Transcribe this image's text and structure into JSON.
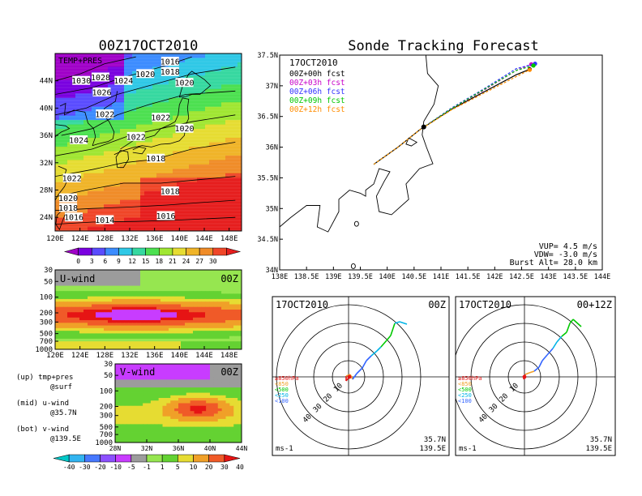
{
  "titles": {
    "left": "00Z17OCT2010",
    "right": "Sonde Tracking Forecast"
  },
  "colors": {
    "temp_scale": [
      "#a000c8",
      "#7a00e0",
      "#5a4cff",
      "#3c8cff",
      "#2fc8e6",
      "#36d8a0",
      "#4ce050",
      "#a0e632",
      "#e6dc32",
      "#f0b428",
      "#f08c28",
      "#f04628",
      "#e61e1e"
    ],
    "wind_scale": [
      "#00c8c8",
      "#32b4f0",
      "#4678ff",
      "#8c50ff",
      "#c83cff",
      "#9c9c9c",
      "#96e650",
      "#64d232",
      "#e6dc32",
      "#f0a028",
      "#f05a28",
      "#e61414"
    ],
    "track_00": "#000000",
    "track_03": "#c800c8",
    "track_06": "#3232ff",
    "track_09": "#00c800",
    "track_12": "#ff8c00",
    "hodo_low": "#e61414",
    "hodo_850": "#f0a028",
    "hodo_500": "#00c800",
    "hodo_250": "#00b4e6",
    "hodo_100": "#3264ff"
  },
  "side_labels": {
    "up": "(up) tmp+pres",
    "up_sub": "@surf",
    "mid": "(mid) u-wind",
    "mid_sub": "@35.7N",
    "bot": "(bot) v-wind",
    "bot_sub": "@139.5E"
  },
  "chart_data": [
    {
      "type": "heatmap",
      "panel": "surface temperature + pressure",
      "title": "TEMP+PRES",
      "x_ticks": [
        "120E",
        "124E",
        "128E",
        "132E",
        "136E",
        "140E",
        "144E",
        "148E"
      ],
      "y_ticks": [
        "24N",
        "28N",
        "32N",
        "36N",
        "40N",
        "44N"
      ],
      "xlim": [
        120,
        150
      ],
      "ylim": [
        22,
        48
      ],
      "isobar_labels": [
        {
          "text": "1016",
          "lon": 138.5,
          "lat": 46.8
        },
        {
          "text": "1018",
          "lon": 138.5,
          "lat": 45.3
        },
        {
          "text": "1030",
          "lon": 124.2,
          "lat": 44.0
        },
        {
          "text": "1028",
          "lon": 127.3,
          "lat": 44.5
        },
        {
          "text": "1024",
          "lon": 131.0,
          "lat": 44.0
        },
        {
          "text": "1020",
          "lon": 134.5,
          "lat": 45.0
        },
        {
          "text": "1020",
          "lon": 140.8,
          "lat": 43.7
        },
        {
          "text": "1026",
          "lon": 127.5,
          "lat": 42.3
        },
        {
          "text": "1022",
          "lon": 128.0,
          "lat": 39.1
        },
        {
          "text": "1022",
          "lon": 137.0,
          "lat": 38.6
        },
        {
          "text": "1020",
          "lon": 140.8,
          "lat": 37.0
        },
        {
          "text": "1024",
          "lon": 123.8,
          "lat": 35.3
        },
        {
          "text": "1022",
          "lon": 133.0,
          "lat": 35.8
        },
        {
          "text": "1018",
          "lon": 136.2,
          "lat": 32.6
        },
        {
          "text": "1022",
          "lon": 122.7,
          "lat": 29.7
        },
        {
          "text": "1018",
          "lon": 138.5,
          "lat": 27.8
        },
        {
          "text": "1020",
          "lon": 122.1,
          "lat": 26.8
        },
        {
          "text": "1018",
          "lon": 122.1,
          "lat": 25.4
        },
        {
          "text": "1016",
          "lon": 123.0,
          "lat": 24.0
        },
        {
          "text": "1014",
          "lon": 128.0,
          "lat": 23.6
        },
        {
          "text": "1016",
          "lon": 137.8,
          "lat": 24.2
        }
      ],
      "colorbar_ticks": [
        "0",
        "3",
        "6",
        "9",
        "12",
        "15",
        "18",
        "21",
        "24",
        "27",
        "30"
      ]
    },
    {
      "type": "heatmap",
      "panel": "u-wind cross section",
      "title": "U-wind",
      "time_label": "00Z",
      "x_ticks": [
        "120E",
        "124E",
        "128E",
        "132E",
        "136E",
        "140E",
        "144E",
        "148E"
      ],
      "y_ticks": [
        "30",
        "50",
        "100",
        "200",
        "300",
        "500",
        "700",
        "1000"
      ],
      "xlim": [
        120,
        150
      ]
    },
    {
      "type": "heatmap",
      "panel": "v-wind cross section",
      "title": "V-wind",
      "time_label": "00Z",
      "x_ticks": [
        "28N",
        "32N",
        "36N",
        "40N",
        "44N"
      ],
      "y_ticks": [
        "30",
        "50",
        "100",
        "200",
        "300",
        "500",
        "700",
        "1000"
      ],
      "xlim": [
        28,
        44
      ],
      "colorbar_ticks": [
        "-40",
        "-30",
        "-20",
        "-10",
        "-5",
        "-1",
        "1",
        "5",
        "10",
        "20",
        "30",
        "40"
      ]
    },
    {
      "type": "line",
      "panel": "sonde tracking map",
      "date": "17OCT2010",
      "x_ticks": [
        "138E",
        "138.5E",
        "139E",
        "139.5E",
        "140E",
        "140.5E",
        "141E",
        "141.5E",
        "142E",
        "142.5E",
        "143E",
        "143.5E",
        "144E"
      ],
      "y_ticks": [
        "34N",
        "34.5N",
        "35N",
        "35.5N",
        "36N",
        "36.5N",
        "37N",
        "37.5N"
      ],
      "xlim": [
        138,
        144
      ],
      "ylim": [
        34,
        37.5
      ],
      "series": [
        {
          "name": "00Z+00h fcst",
          "x": [
            139.75,
            140.2,
            140.6,
            141.2,
            141.8,
            142.4,
            142.65
          ],
          "y": [
            35.72,
            36.0,
            36.28,
            36.62,
            36.9,
            37.18,
            37.27
          ]
        },
        {
          "name": "00Z+03h fcst",
          "x": [
            139.75,
            140.2,
            140.6,
            141.2,
            141.8,
            142.4,
            142.68
          ],
          "y": [
            35.72,
            36.0,
            36.28,
            36.63,
            36.93,
            37.25,
            37.35
          ]
        },
        {
          "name": "00Z+06h fcst",
          "x": [
            139.75,
            140.2,
            140.6,
            141.2,
            141.8,
            142.4,
            142.75
          ],
          "y": [
            35.72,
            36.0,
            36.28,
            36.64,
            36.95,
            37.28,
            37.36
          ]
        },
        {
          "name": "00Z+09h fcst",
          "x": [
            139.75,
            140.2,
            140.6,
            141.2,
            141.8,
            142.4,
            142.72
          ],
          "y": [
            35.72,
            36.0,
            36.28,
            36.63,
            36.94,
            37.25,
            37.33
          ]
        },
        {
          "name": "00Z+12h fcst",
          "x": [
            139.75,
            140.2,
            140.6,
            141.2,
            141.8,
            142.4,
            142.65
          ],
          "y": [
            35.72,
            36.0,
            36.28,
            36.61,
            36.88,
            37.15,
            37.26
          ]
        }
      ],
      "params": [
        "VUP= 4.5 m/s",
        "VDW= -3.0 m/s",
        "Burst Alt= 28.0 km"
      ]
    },
    {
      "type": "line",
      "panel": "hodograph 00Z",
      "date": "17OCT2010",
      "time_label": "00Z",
      "ring_labels": [
        "10",
        "20",
        "30",
        "40"
      ],
      "legend": [
        "≥850hPa",
        "<850",
        "<500",
        "<250",
        "<100"
      ],
      "unit": "ms-1",
      "location": [
        "35.7N",
        "139.5E"
      ],
      "x": [
        1,
        -3,
        -3,
        2,
        5,
        10,
        17,
        22,
        28,
        35,
        40,
        47,
        52,
        55,
        57,
        63,
        72
      ],
      "y": [
        0,
        -5,
        1,
        3,
        -3,
        4,
        11,
        20,
        26,
        32,
        37,
        45,
        51,
        60,
        66,
        68,
        65
      ]
    },
    {
      "type": "line",
      "panel": "hodograph 00+12Z",
      "date": "17OCT2010",
      "time_label": "00+12Z",
      "ring_labels": [
        "10",
        "20",
        "30",
        "40"
      ],
      "legend": [
        "≥850hPa",
        "<850",
        "<500",
        "<250",
        "<100"
      ],
      "unit": "ms-1",
      "location": [
        "35.7N",
        "139.5E"
      ],
      "x": [
        0,
        -1,
        1,
        6,
        12,
        18,
        22,
        28,
        35,
        40,
        46,
        52,
        56,
        60,
        70
      ],
      "y": [
        0,
        -3,
        3,
        5,
        7,
        12,
        20,
        27,
        35,
        43,
        50,
        55,
        66,
        71,
        62
      ]
    }
  ]
}
